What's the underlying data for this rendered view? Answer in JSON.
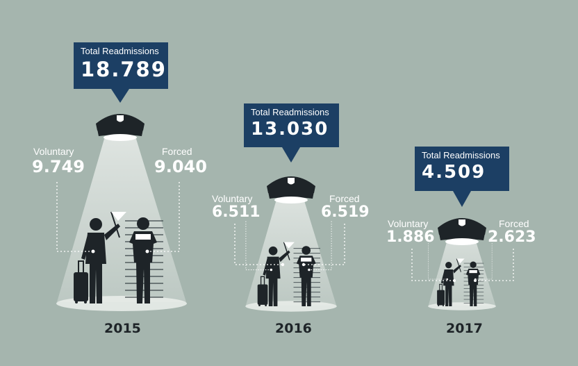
{
  "years": [
    {
      "year": "2015",
      "total_label": "Total Readmissions",
      "total_value": "18.789",
      "voluntary_label": "Voluntary",
      "voluntary_value": "9.749",
      "forced_label": "Forced",
      "forced_value": "9.040"
    },
    {
      "year": "2016",
      "total_label": "Total Readmissions",
      "total_value": "13.030",
      "voluntary_label": "Voluntary",
      "voluntary_value": "6.511",
      "forced_label": "Forced",
      "forced_value": "6.519"
    },
    {
      "year": "2017",
      "total_label": "Total Readmissions",
      "total_value": "4.509",
      "voluntary_label": "Voluntary",
      "voluntary_value": "1.886",
      "forced_label": "Forced",
      "forced_value": "2.623"
    }
  ],
  "colors": {
    "background": "#a5b5ae",
    "callout": "#1c3f64",
    "figure": "#1e2428",
    "light": "#e8ece9"
  }
}
